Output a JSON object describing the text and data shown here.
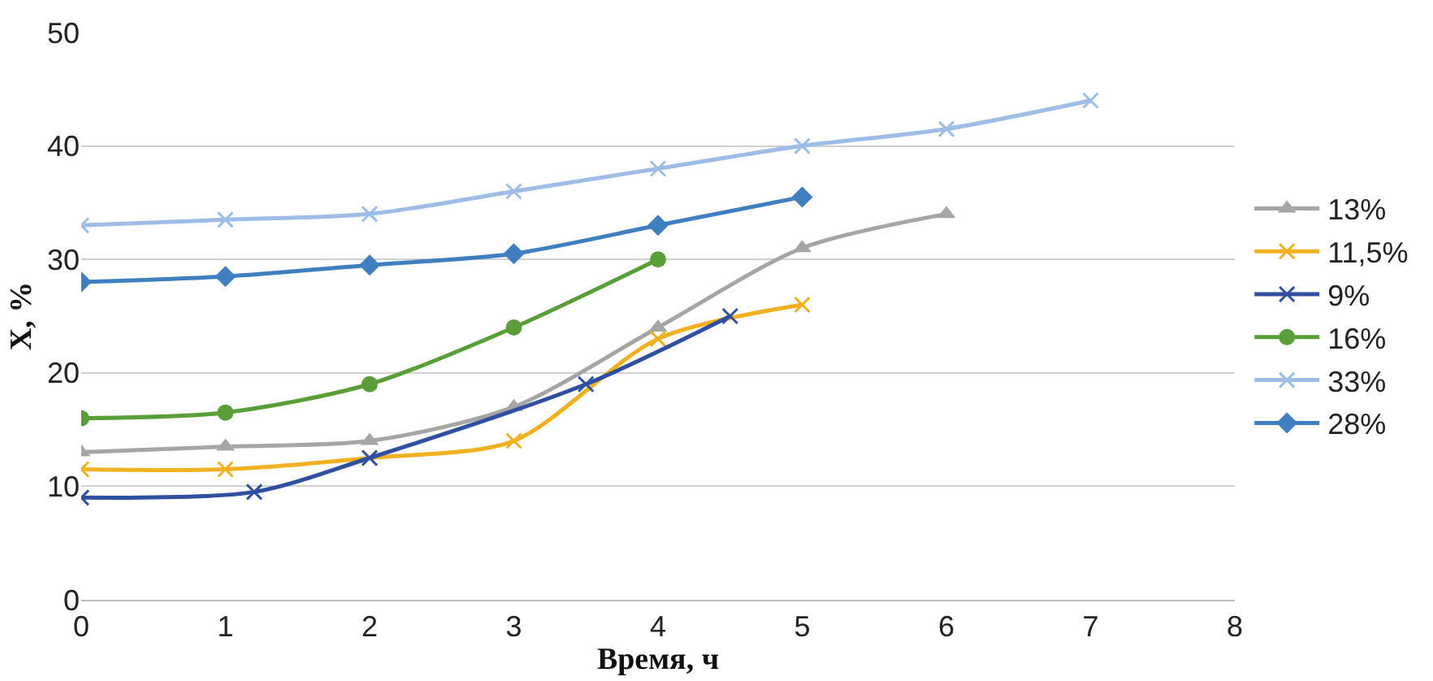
{
  "chart_data": {
    "type": "line",
    "xlabel": "Время, ч",
    "ylabel": "X, %",
    "xlim": [
      0,
      8
    ],
    "xticks": [
      0,
      1,
      2,
      3,
      4,
      5,
      6,
      7,
      8
    ],
    "ylim": [
      0,
      50
    ],
    "yticks": [
      0,
      10,
      20,
      30,
      40,
      50
    ],
    "grid": "y",
    "legend": "right",
    "line_style": "solid",
    "series": [
      {
        "name": "13%",
        "color": "#a5a5a5",
        "marker": "triangle",
        "x": [
          0,
          1,
          2,
          3,
          4,
          5,
          6
        ],
        "values": [
          13,
          13.5,
          14,
          17,
          24,
          31,
          34
        ]
      },
      {
        "name": "11,5%",
        "color": "#f0b020",
        "marker": "cross",
        "x": [
          0,
          1,
          2,
          3,
          4,
          5
        ],
        "values": [
          11.5,
          11.5,
          12.5,
          14,
          23,
          26
        ]
      },
      {
        "name": "9%",
        "color": "#2f4fa0",
        "marker": "cross",
        "x": [
          0,
          1.2,
          2,
          3.5,
          4.5
        ],
        "values": [
          9,
          9.5,
          12.5,
          19,
          25
        ]
      },
      {
        "name": "16%",
        "color": "#5a9e3a",
        "marker": "circle",
        "x": [
          0,
          1,
          2,
          3,
          4
        ],
        "values": [
          16,
          16.5,
          19,
          24,
          30
        ]
      },
      {
        "name": "33%",
        "color": "#9dbde6",
        "marker": "cross",
        "x": [
          0,
          1,
          2,
          3,
          4,
          5,
          6,
          7
        ],
        "values": [
          33,
          33.5,
          34,
          36,
          38,
          40,
          41.5,
          44
        ]
      },
      {
        "name": "28%",
        "color": "#3f7fbf",
        "marker": "diamond",
        "x": [
          0,
          1,
          2,
          3,
          4,
          5
        ],
        "values": [
          28,
          28.5,
          29.5,
          30.5,
          33,
          35.5
        ]
      }
    ]
  }
}
